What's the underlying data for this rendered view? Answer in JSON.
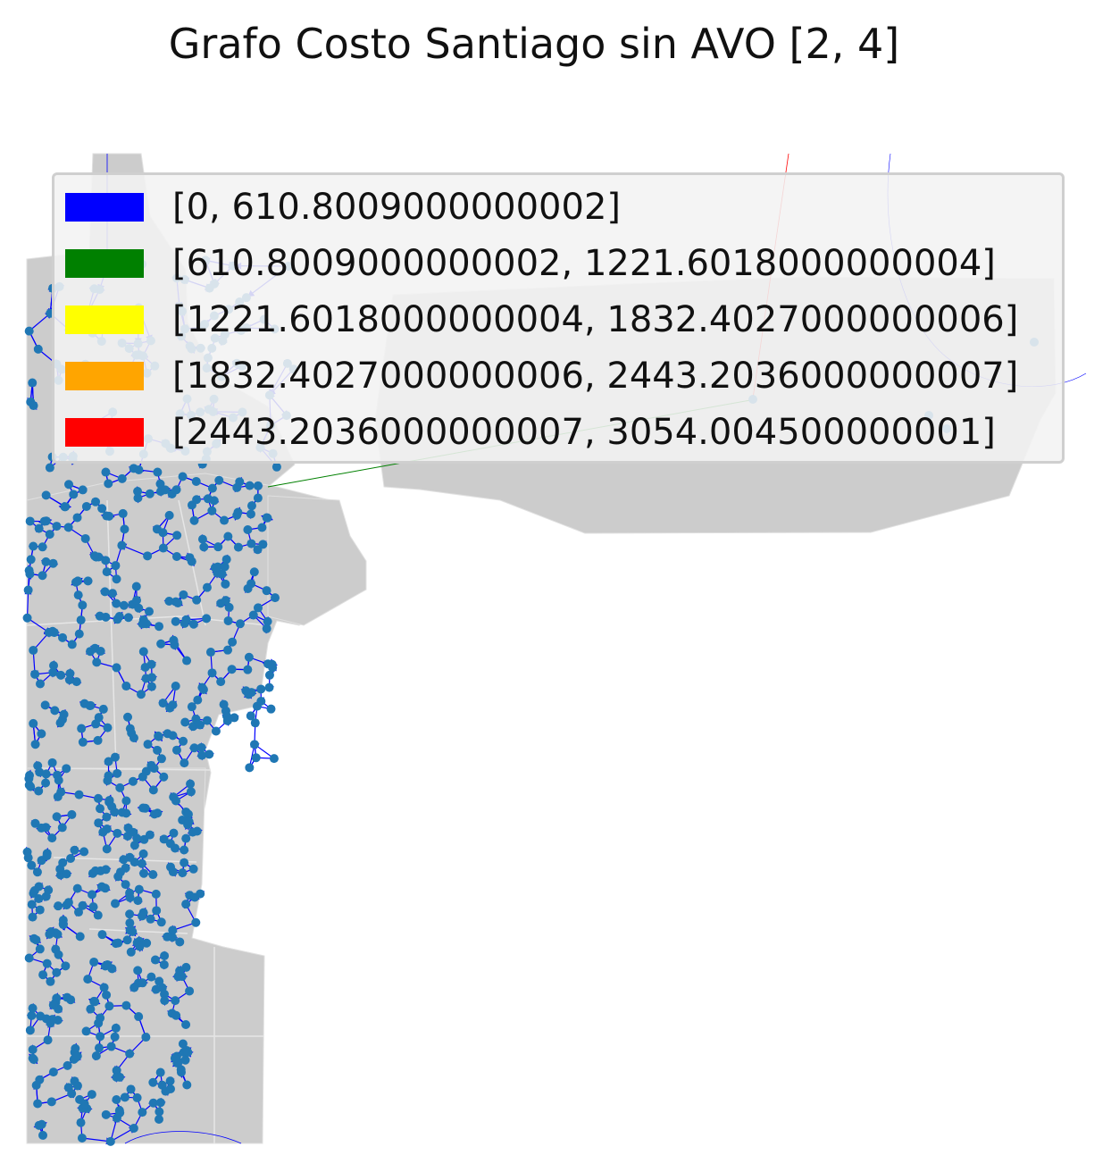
{
  "title": "Grafo Costo Santiago sin AVO [2, 4]",
  "legend": [
    {
      "label": "[0, 610.8009000000002]",
      "color": "#0000ff"
    },
    {
      "label": "[610.8009000000002, 1221.6018000000004]",
      "color": "#008000"
    },
    {
      "label": "[1221.6018000000004, 1832.4027000000006]",
      "color": "#ffff00"
    },
    {
      "label": "[1832.4027000000006, 2443.2036000000007]",
      "color": "#ffa500"
    },
    {
      "label": "[2443.2036000000007, 3054.004500000001]",
      "color": "#ff0000"
    }
  ],
  "colors": {
    "region_fill": "#cccccc",
    "node": "#1f77b4",
    "edge_low": "#0000ff"
  }
}
